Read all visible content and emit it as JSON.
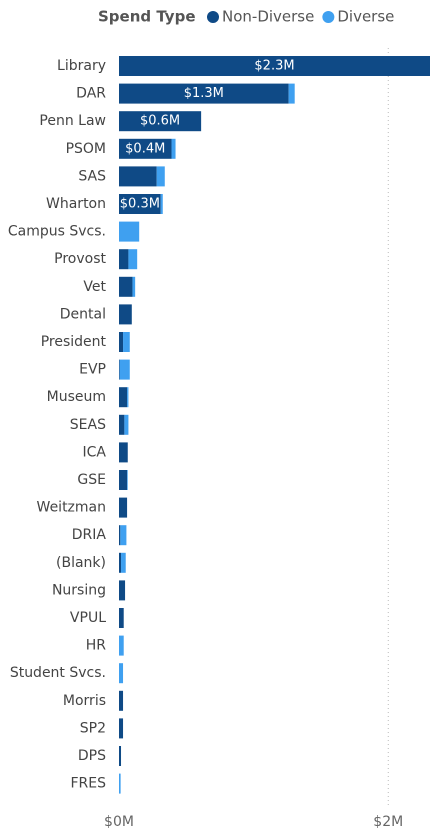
{
  "chart_data": {
    "type": "hbar_stacked",
    "legend_title": "Spend Type",
    "legend": "top",
    "categories": [
      "Library",
      "DAR",
      "Penn Law",
      "PSOM",
      "SAS",
      "Wharton",
      "Campus Svcs.",
      "Provost",
      "Vet",
      "Dental",
      "President",
      "EVP",
      "Museum",
      "SEAS",
      "ICA",
      "GSE",
      "Weitzman",
      "DRIA",
      "(Blank)",
      "Nursing",
      "VPUL",
      "HR",
      "Student Svcs.",
      "Morris",
      "SP2",
      "DPS",
      "FRES"
    ],
    "series": [
      {
        "name": "Non-Diverse",
        "color": "#0f4a86",
        "values": [
          2310000,
          1260000,
          610000,
          390000,
          280000,
          310000,
          0,
          70000,
          100000,
          95000,
          30000,
          5000,
          60000,
          40000,
          65000,
          60000,
          60000,
          10000,
          15000,
          45000,
          35000,
          0,
          0,
          30000,
          30000,
          15000,
          0
        ],
        "value_labels": [
          "$2.3M",
          "$1.3M",
          "$0.6M",
          "$0.4M",
          null,
          "$0.3M",
          null,
          null,
          null,
          null,
          null,
          null,
          null,
          null,
          null,
          null,
          null,
          null,
          null,
          null,
          null,
          null,
          null,
          null,
          null,
          null,
          null
        ]
      },
      {
        "name": "Diverse",
        "color": "#3fa0f0",
        "values": [
          0,
          45000,
          0,
          30000,
          60000,
          15000,
          150000,
          65000,
          20000,
          0,
          50000,
          75000,
          10000,
          30000,
          0,
          5000,
          0,
          45000,
          35000,
          0,
          0,
          35000,
          30000,
          0,
          0,
          0,
          12000
        ]
      }
    ],
    "xlim": [
      0,
      2310000
    ],
    "xticks": [
      {
        "value": 0,
        "label": "$0M"
      },
      {
        "value": 2000000,
        "label": "$2M"
      }
    ],
    "grid": true
  }
}
